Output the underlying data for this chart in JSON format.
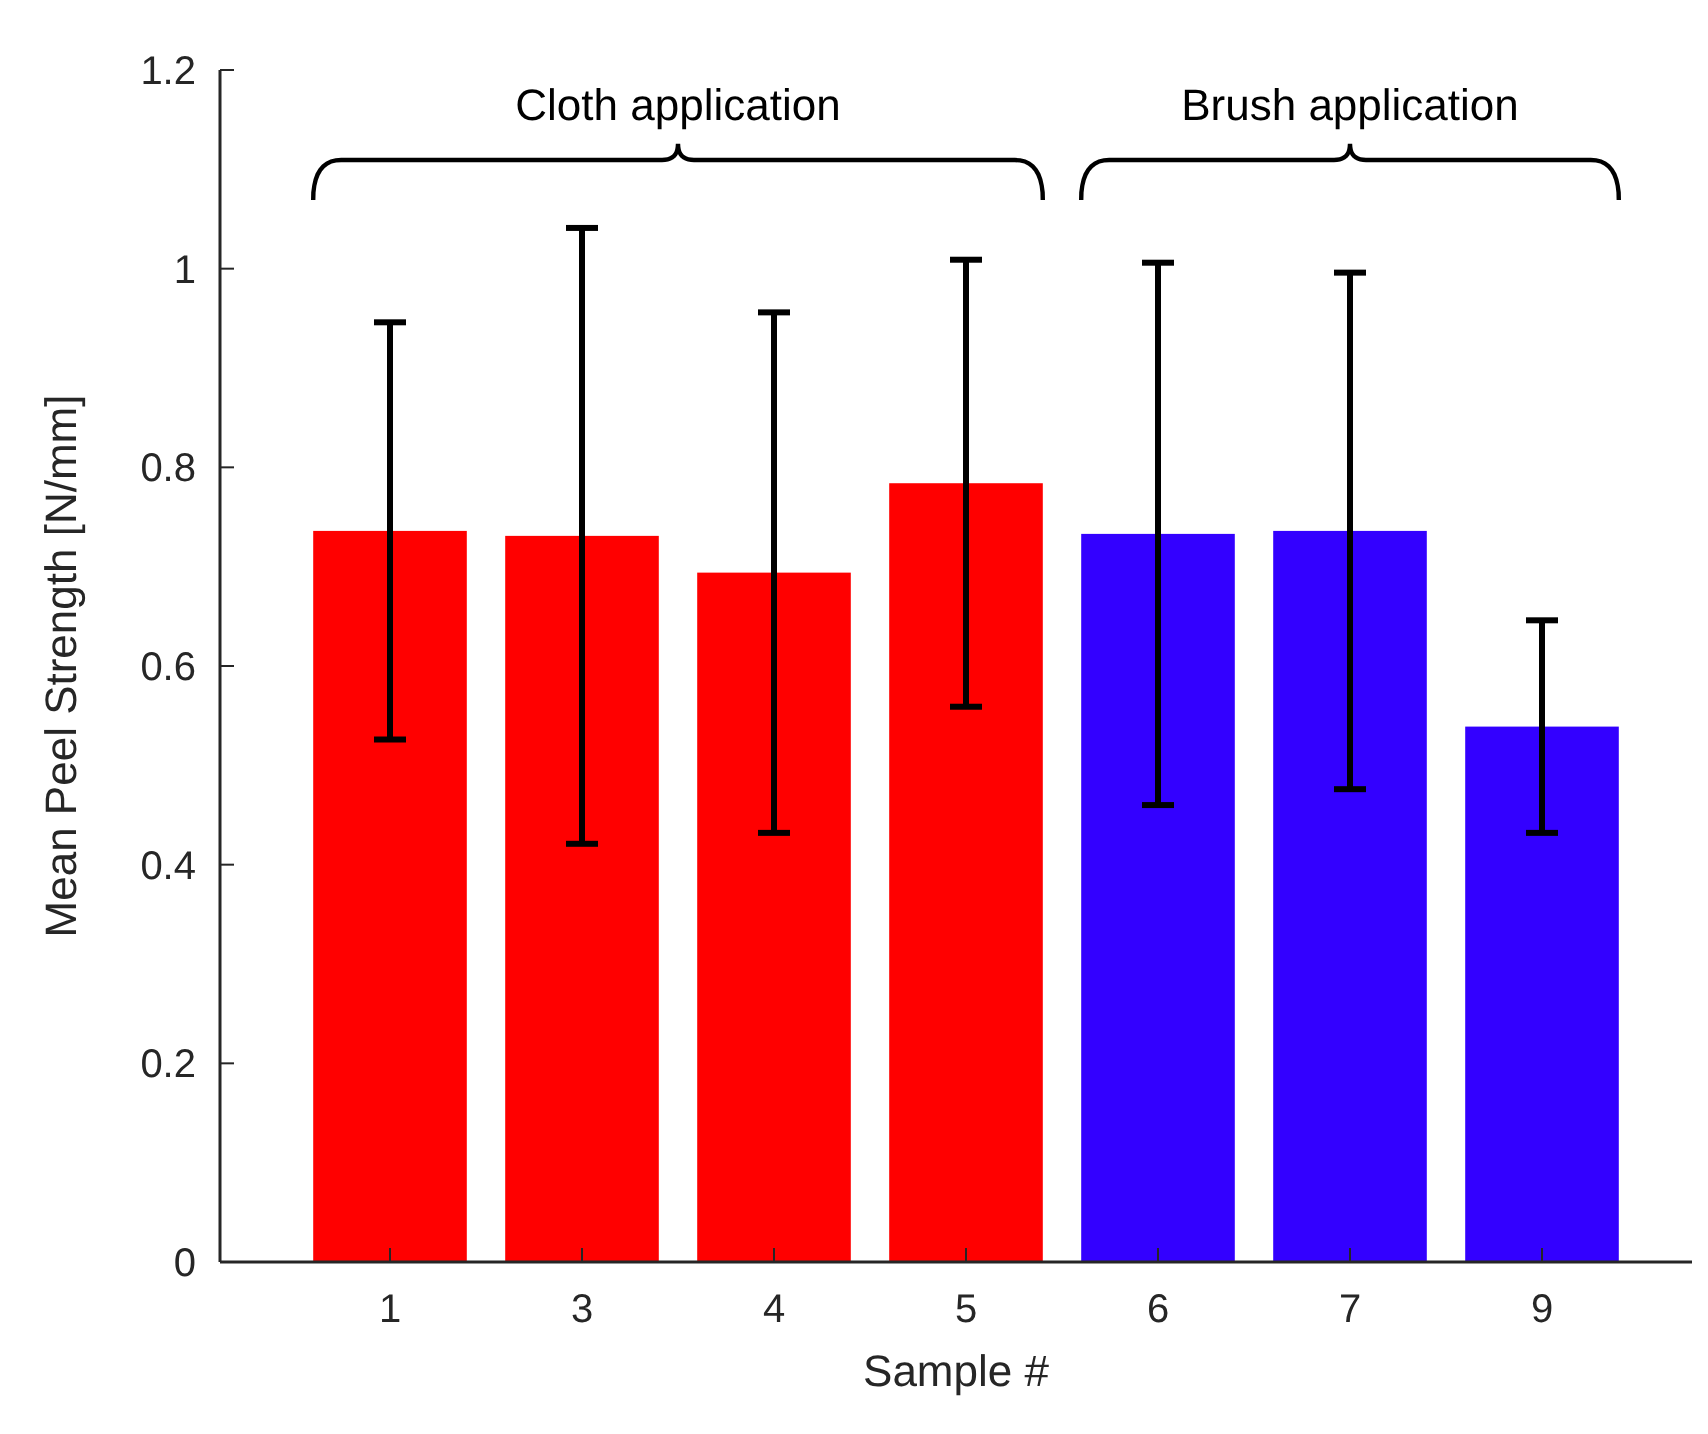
{
  "chart_data": {
    "type": "bar",
    "xlabel": "Sample #",
    "ylabel": "Mean Peel Strength [N/mm]",
    "categories": [
      "1",
      "3",
      "4",
      "5",
      "6",
      "7",
      "9"
    ],
    "values": [
      0.736,
      0.731,
      0.694,
      0.784,
      0.733,
      0.736,
      0.539
    ],
    "errors": [
      0.21,
      0.31,
      0.262,
      0.225,
      0.273,
      0.26,
      0.107
    ],
    "colors": [
      "#ff0000",
      "#ff0000",
      "#ff0000",
      "#ff0000",
      "#3300ff",
      "#3300ff",
      "#3300ff"
    ],
    "annotations": [
      "Cloth application",
      "Brush application"
    ],
    "ylim": [
      0,
      1.2
    ],
    "yticks": [
      0,
      0.2,
      0.4,
      0.6,
      0.8,
      1,
      1.2
    ],
    "grid": false
  }
}
